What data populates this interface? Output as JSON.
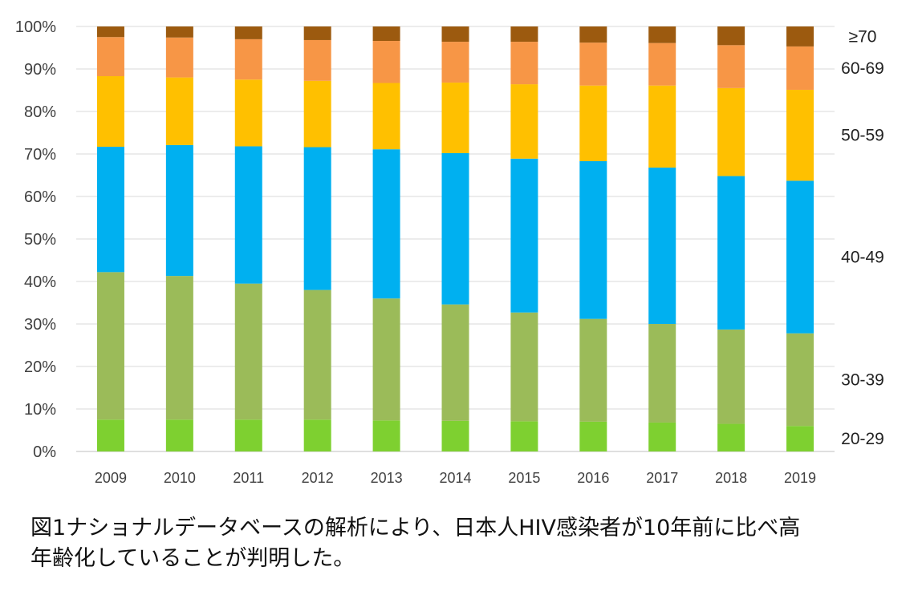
{
  "chart_data": {
    "type": "bar",
    "stacked": true,
    "categories": [
      "2009",
      "2010",
      "2011",
      "2012",
      "2013",
      "2014",
      "2015",
      "2016",
      "2017",
      "2018",
      "2019"
    ],
    "ylim": [
      0,
      100
    ],
    "yticks": [
      "0%",
      "10%",
      "20%",
      "30%",
      "40%",
      "50%",
      "60%",
      "70%",
      "80%",
      "90%",
      "100%"
    ],
    "ytick_values": [
      0,
      10,
      20,
      30,
      40,
      50,
      60,
      70,
      80,
      90,
      100
    ],
    "grid": true,
    "series": [
      {
        "name": "20-29",
        "color": "#7ED030",
        "values": [
          7.5,
          7.5,
          7.5,
          7.5,
          7.3,
          7.2,
          7.1,
          7.0,
          6.8,
          6.5,
          6.0
        ]
      },
      {
        "name": "30-39",
        "color": "#9BBB59",
        "values": [
          34.7,
          33.8,
          32.0,
          30.5,
          28.7,
          27.4,
          25.6,
          24.2,
          23.2,
          22.2,
          21.8
        ]
      },
      {
        "name": "40-49",
        "color": "#00B0F0",
        "values": [
          29.5,
          30.8,
          32.3,
          33.6,
          35.1,
          35.6,
          36.2,
          37.1,
          36.8,
          36.1,
          35.9
        ]
      },
      {
        "name": "50-59",
        "color": "#FFC000",
        "values": [
          16.6,
          15.9,
          15.7,
          15.6,
          15.6,
          16.6,
          17.5,
          17.8,
          19.3,
          20.7,
          21.4
        ]
      },
      {
        "name": "60-69",
        "color": "#F79646",
        "values": [
          9.2,
          9.4,
          9.5,
          9.6,
          9.9,
          9.6,
          10.0,
          10.1,
          10.0,
          10.1,
          10.2
        ]
      },
      {
        "name": "≥70",
        "color": "#9C5A0F",
        "values": [
          2.5,
          2.6,
          3.0,
          3.2,
          3.4,
          3.6,
          3.6,
          3.8,
          3.9,
          4.4,
          4.7
        ]
      }
    ],
    "legend_placement": "right, inline labels"
  },
  "caption": {
    "line1": "図1ナショナルデータベースの解析により、日本人HIV感染者が10年前に比べ高",
    "line2": "年齢化していることが判明した。"
  }
}
